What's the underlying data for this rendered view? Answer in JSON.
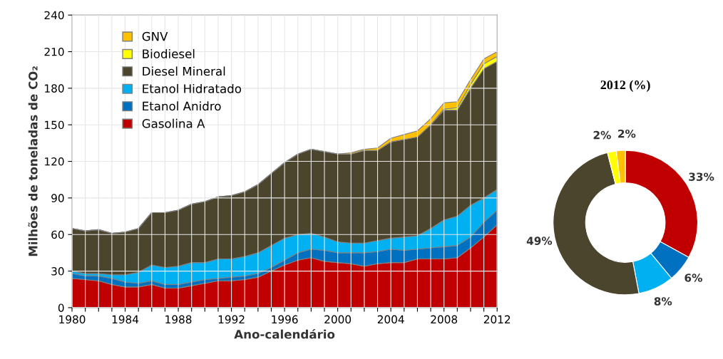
{
  "chart_data": [
    {
      "type": "area",
      "stacked": true,
      "xlabel": "Ano-calendário",
      "ylabel": "Milhões de toneladas de CO₂",
      "x": [
        1980,
        1981,
        1982,
        1983,
        1984,
        1985,
        1986,
        1987,
        1988,
        1989,
        1990,
        1991,
        1992,
        1993,
        1994,
        1995,
        1996,
        1997,
        1998,
        1999,
        2000,
        2001,
        2002,
        2003,
        2004,
        2005,
        2006,
        2007,
        2008,
        2009,
        2010,
        2011,
        2012
      ],
      "xlim": [
        1980,
        2012
      ],
      "ylim": [
        0,
        240
      ],
      "yticks": [
        0,
        30,
        60,
        90,
        120,
        150,
        180,
        210,
        240
      ],
      "xticks": [
        1980,
        {
          "value": 1981,
          "label": null
        },
        {
          "value": 1982,
          "label": null
        },
        {
          "value": 1983,
          "label": null
        },
        1984,
        {
          "value": 1985,
          "label": null
        },
        {
          "value": 1986,
          "label": null
        },
        {
          "value": 1987,
          "label": null
        },
        1988,
        {
          "value": 1989,
          "label": null
        },
        {
          "value": 1990,
          "label": null
        },
        {
          "value": 1991,
          "label": null
        },
        1992,
        {
          "value": 1993,
          "label": null
        },
        {
          "value": 1994,
          "label": null
        },
        {
          "value": 1995,
          "label": null
        },
        1996,
        {
          "value": 1997,
          "label": null
        },
        {
          "value": 1998,
          "label": null
        },
        {
          "value": 1999,
          "label": null
        },
        2000,
        {
          "value": 2001,
          "label": null
        },
        {
          "value": 2002,
          "label": null
        },
        {
          "value": 2003,
          "label": null
        },
        2004,
        {
          "value": 2005,
          "label": null
        },
        {
          "value": 2006,
          "label": null
        },
        {
          "value": 2007,
          "label": null
        },
        2008,
        {
          "value": 2009,
          "label": null
        },
        {
          "value": 2010,
          "label": null
        },
        {
          "value": 2011,
          "label": null
        },
        2012
      ],
      "grid": true,
      "legend": "top left",
      "series": [
        {
          "name": "Gasolina A",
          "color": "#c00000",
          "values": [
            24,
            23,
            22,
            19,
            17,
            17,
            19,
            16,
            16,
            18,
            20,
            22,
            22,
            23,
            25,
            30,
            35,
            39,
            41,
            38,
            37,
            36,
            34,
            36,
            37,
            37,
            40,
            40,
            40,
            41,
            49,
            58,
            68
          ]
        },
        {
          "name": "Etanol Anidro",
          "color": "#0070c0",
          "values": [
            4,
            3,
            4,
            5,
            4,
            3,
            3,
            3,
            3,
            3,
            3,
            2,
            3,
            3,
            3,
            3,
            4,
            6,
            7,
            9,
            8,
            9,
            11,
            10,
            11,
            10,
            8,
            9,
            10,
            10,
            9,
            12,
            12
          ]
        },
        {
          "name": "Etanol Hidratado",
          "color": "#00b0f0",
          "values": [
            2,
            2,
            2,
            3,
            6,
            9,
            13,
            14,
            15,
            16,
            14,
            16,
            15,
            16,
            17,
            18,
            18,
            15,
            13,
            11,
            9,
            8,
            8,
            9,
            9,
            11,
            11,
            16,
            22,
            24,
            26,
            20,
            17
          ]
        },
        {
          "name": "Diesel Mineral",
          "color": "#4b452e",
          "values": [
            35,
            35,
            36,
            34,
            35,
            36,
            43,
            45,
            46,
            48,
            50,
            51,
            52,
            53,
            56,
            59,
            62,
            66,
            69,
            70,
            72,
            73,
            76,
            74,
            79,
            80,
            81,
            85,
            90,
            87,
            96,
            106,
            105
          ]
        },
        {
          "name": "Biodiesel",
          "color": "#ffff00",
          "values": [
            0,
            0,
            0,
            0,
            0,
            0,
            0,
            0,
            0,
            0,
            0,
            0,
            0,
            0,
            0,
            0,
            0,
            0,
            0,
            0,
            0,
            0,
            0,
            0,
            0,
            0,
            0,
            0,
            1,
            2,
            3,
            4,
            4
          ]
        },
        {
          "name": "GNV",
          "color": "#ffc000",
          "values": [
            0,
            0,
            0,
            0,
            0,
            0,
            0,
            0,
            0,
            0,
            0,
            0,
            0,
            0,
            0,
            0,
            0,
            0,
            0,
            0,
            0,
            1,
            1,
            2,
            3,
            4,
            5,
            5,
            5,
            5,
            4,
            4,
            4
          ]
        }
      ]
    },
    {
      "type": "donut",
      "title": "2012 (%)",
      "categories": [
        null,
        null,
        null,
        null,
        null,
        null
      ],
      "values": [
        33,
        6,
        8,
        49,
        2,
        2
      ],
      "colors": [
        "#c00000",
        "#0070c0",
        "#00b0f0",
        "#4b452e",
        "#ffff00",
        "#ffc000"
      ],
      "value_labels": [
        "33%",
        "6%",
        "8%",
        "49%",
        "2%",
        "2%"
      ]
    }
  ]
}
